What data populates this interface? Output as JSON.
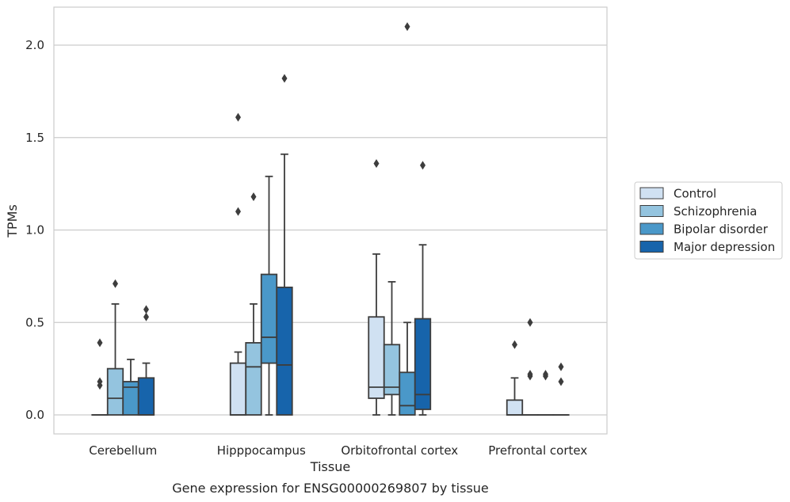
{
  "chart_data": {
    "type": "box",
    "xlabel": "Tissue",
    "ylabel": "TPMs",
    "caption": "Gene expression for ENSG00000269807 by tissue",
    "ylim": [
      -0.1,
      2.22
    ],
    "yticks": [
      0.0,
      0.5,
      1.0,
      1.5,
      2.0
    ],
    "ytick_labels": [
      "0.0",
      "0.5",
      "1.0",
      "1.5",
      "2.0"
    ],
    "grid": "horizontal",
    "legend_position": "right",
    "categories": [
      "Cerebellum",
      "Hipppocampus",
      "Orbitofrontal cortex",
      "Prefrontal cortex"
    ],
    "series": [
      {
        "name": "Control",
        "color": "#d0e1f2",
        "boxes": [
          {
            "whisker_low": 0,
            "q1": 0,
            "median": 0,
            "q3": 0,
            "whisker_high": 0,
            "outliers": [
              0.16,
              0.18,
              0.39
            ]
          },
          {
            "whisker_low": 0,
            "q1": 0,
            "median": 0,
            "q3": 0.28,
            "whisker_high": 0.34,
            "outliers": [
              1.1,
              1.61
            ]
          },
          {
            "whisker_low": 0,
            "q1": 0.09,
            "median": 0.15,
            "q3": 0.53,
            "whisker_high": 0.87,
            "outliers": [
              1.36
            ]
          },
          {
            "whisker_low": 0,
            "q1": 0,
            "median": 0,
            "q3": 0.08,
            "whisker_high": 0.2,
            "outliers": [
              0.38
            ]
          }
        ]
      },
      {
        "name": "Schizophrenia",
        "color": "#94c4df",
        "boxes": [
          {
            "whisker_low": 0,
            "q1": 0,
            "median": 0.09,
            "q3": 0.25,
            "whisker_high": 0.6,
            "outliers": [
              0.71
            ]
          },
          {
            "whisker_low": 0,
            "q1": 0,
            "median": 0.26,
            "q3": 0.39,
            "whisker_high": 0.6,
            "outliers": [
              1.18
            ]
          },
          {
            "whisker_low": 0,
            "q1": 0.11,
            "median": 0.15,
            "q3": 0.38,
            "whisker_high": 0.72,
            "outliers": []
          },
          {
            "whisker_low": 0,
            "q1": 0,
            "median": 0,
            "q3": 0,
            "whisker_high": 0,
            "outliers": [
              0.21,
              0.22,
              0.5
            ]
          }
        ]
      },
      {
        "name": "Bipolar disorder",
        "color": "#4a98c9",
        "boxes": [
          {
            "whisker_low": 0,
            "q1": 0,
            "median": 0.15,
            "q3": 0.18,
            "whisker_high": 0.3,
            "outliers": []
          },
          {
            "whisker_low": 0,
            "q1": 0.28,
            "median": 0.42,
            "q3": 0.76,
            "whisker_high": 1.29,
            "outliers": []
          },
          {
            "whisker_low": 0,
            "q1": 0,
            "median": 0.05,
            "q3": 0.23,
            "whisker_high": 0.5,
            "outliers": [
              2.1
            ]
          },
          {
            "whisker_low": 0,
            "q1": 0,
            "median": 0,
            "q3": 0,
            "whisker_high": 0,
            "outliers": [
              0.21,
              0.22
            ]
          }
        ]
      },
      {
        "name": "Major depression",
        "color": "#1764ab",
        "boxes": [
          {
            "whisker_low": 0,
            "q1": 0,
            "median": 0,
            "q3": 0.2,
            "whisker_high": 0.28,
            "outliers": [
              0.53,
              0.57
            ]
          },
          {
            "whisker_low": 0,
            "q1": 0,
            "median": 0.27,
            "q3": 0.69,
            "whisker_high": 1.41,
            "outliers": [
              1.82
            ]
          },
          {
            "whisker_low": 0,
            "q1": 0.03,
            "median": 0.11,
            "q3": 0.52,
            "whisker_high": 0.92,
            "outliers": [
              1.35
            ]
          },
          {
            "whisker_low": 0,
            "q1": 0,
            "median": 0,
            "q3": 0,
            "whisker_high": 0,
            "outliers": [
              0.18,
              0.26
            ]
          }
        ]
      }
    ]
  }
}
